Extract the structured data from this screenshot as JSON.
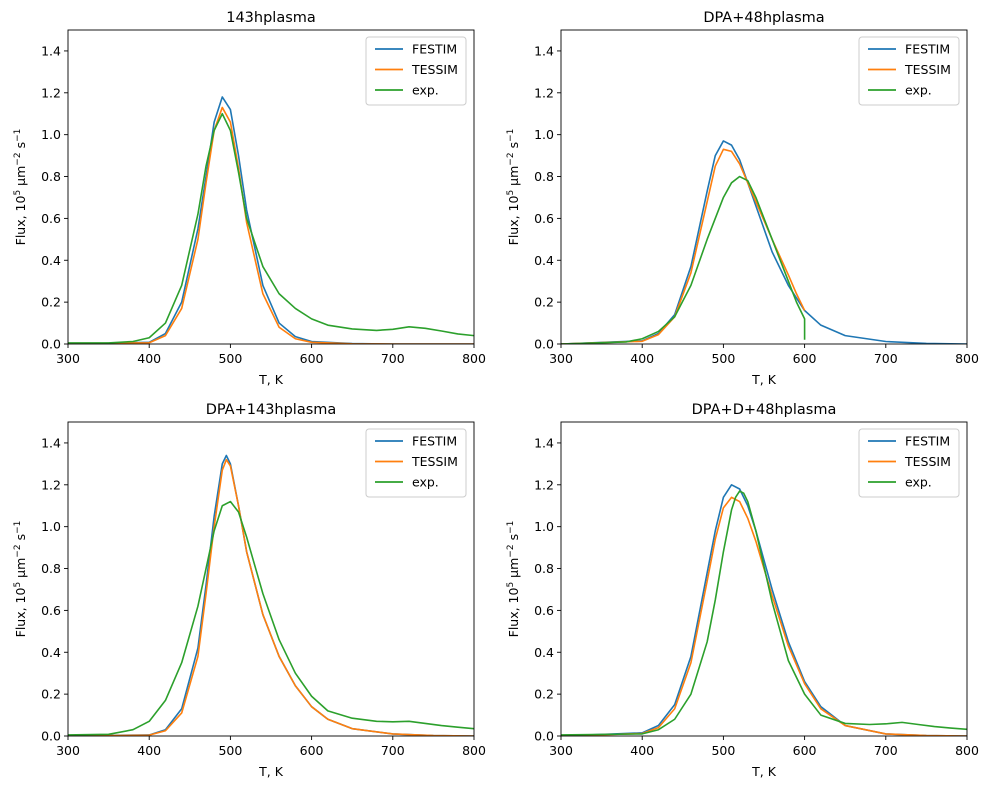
{
  "chart_data": [
    {
      "type": "line",
      "title": "143hplasma",
      "xlabel": "T, K",
      "ylabel": "Flux, 10^5 μm^-2 s^-1",
      "xlim": [
        300,
        800
      ],
      "ylim": [
        0,
        1.5
      ],
      "xticks": [
        "300",
        "400",
        "500",
        "600",
        "700",
        "800"
      ],
      "yticks": [
        "0.0",
        "0.2",
        "0.4",
        "0.6",
        "0.8",
        "1.0",
        "1.2",
        "1.4"
      ],
      "legend_position": "top-right",
      "series": [
        {
          "name": "FESTIM",
          "color": "#1f77b4",
          "x": [
            300,
            400,
            420,
            440,
            460,
            470,
            480,
            490,
            500,
            510,
            520,
            540,
            560,
            580,
            600,
            650,
            700,
            800
          ],
          "y": [
            0,
            0.008,
            0.05,
            0.2,
            0.55,
            0.8,
            1.06,
            1.18,
            1.12,
            0.9,
            0.64,
            0.28,
            0.1,
            0.035,
            0.012,
            0.002,
            0,
            0
          ]
        },
        {
          "name": "TESSIM",
          "color": "#ff7f0e",
          "x": [
            300,
            400,
            420,
            440,
            460,
            470,
            480,
            490,
            500,
            510,
            520,
            540,
            560,
            580,
            600,
            650,
            700,
            800
          ],
          "y": [
            0,
            0.006,
            0.04,
            0.17,
            0.5,
            0.77,
            1.02,
            1.13,
            1.06,
            0.84,
            0.58,
            0.24,
            0.08,
            0.025,
            0.008,
            0.001,
            0,
            0
          ]
        },
        {
          "name": "exp.",
          "color": "#2ca02c",
          "x": [
            300,
            350,
            380,
            400,
            420,
            440,
            460,
            470,
            480,
            490,
            500,
            510,
            520,
            540,
            560,
            580,
            600,
            620,
            650,
            680,
            700,
            720,
            740,
            760,
            780,
            800
          ],
          "y": [
            0.005,
            0.005,
            0.012,
            0.03,
            0.1,
            0.28,
            0.62,
            0.85,
            1.02,
            1.1,
            1.02,
            0.82,
            0.6,
            0.37,
            0.24,
            0.17,
            0.12,
            0.09,
            0.072,
            0.065,
            0.07,
            0.082,
            0.075,
            0.062,
            0.048,
            0.04
          ]
        }
      ]
    },
    {
      "type": "line",
      "title": "DPA+48hplasma",
      "xlabel": "T, K",
      "ylabel": "Flux, 10^5 μm^-2 s^-1",
      "xlim": [
        300,
        800
      ],
      "ylim": [
        0,
        1.5
      ],
      "xticks": [
        "300",
        "400",
        "500",
        "600",
        "700",
        "800"
      ],
      "yticks": [
        "0.0",
        "0.2",
        "0.4",
        "0.6",
        "0.8",
        "1.0",
        "1.2",
        "1.4"
      ],
      "legend_position": "top-right",
      "series": [
        {
          "name": "FESTIM",
          "color": "#1f77b4",
          "x": [
            300,
            400,
            420,
            440,
            460,
            480,
            490,
            500,
            510,
            520,
            540,
            560,
            580,
            600,
            620,
            650,
            700,
            750,
            800
          ],
          "y": [
            0,
            0.015,
            0.05,
            0.14,
            0.37,
            0.73,
            0.9,
            0.97,
            0.95,
            0.88,
            0.66,
            0.44,
            0.28,
            0.16,
            0.09,
            0.04,
            0.012,
            0.003,
            0
          ]
        },
        {
          "name": "TESSIM",
          "color": "#ff7f0e",
          "x": [
            300,
            400,
            420,
            440,
            460,
            480,
            490,
            500,
            510,
            520,
            540,
            560,
            580,
            590,
            600
          ],
          "y": [
            0,
            0.013,
            0.045,
            0.13,
            0.34,
            0.68,
            0.85,
            0.93,
            0.92,
            0.86,
            0.68,
            0.5,
            0.33,
            0.24,
            0.16
          ]
        },
        {
          "name": "exp.",
          "color": "#2ca02c",
          "x": [
            300,
            380,
            400,
            420,
            440,
            460,
            480,
            500,
            510,
            520,
            530,
            540,
            560,
            580,
            590,
            600,
            600
          ],
          "y": [
            0,
            0.01,
            0.025,
            0.06,
            0.13,
            0.28,
            0.5,
            0.7,
            0.77,
            0.8,
            0.78,
            0.7,
            0.5,
            0.3,
            0.2,
            0.12,
            0.02
          ]
        }
      ]
    },
    {
      "type": "line",
      "title": "DPA+143hplasma",
      "xlabel": "T, K",
      "ylabel": "Flux, 10^5 μm^-2 s^-1",
      "xlim": [
        300,
        800
      ],
      "ylim": [
        0,
        1.5
      ],
      "xticks": [
        "300",
        "400",
        "500",
        "600",
        "700",
        "800"
      ],
      "yticks": [
        "0.0",
        "0.2",
        "0.4",
        "0.6",
        "0.8",
        "1.0",
        "1.2",
        "1.4"
      ],
      "legend_position": "top-right",
      "series": [
        {
          "name": "FESTIM",
          "color": "#1f77b4",
          "x": [
            300,
            400,
            420,
            440,
            460,
            470,
            480,
            490,
            495,
            500,
            510,
            520,
            540,
            560,
            580,
            600,
            620,
            650,
            700,
            750,
            800
          ],
          "y": [
            0,
            0.005,
            0.03,
            0.13,
            0.42,
            0.72,
            1.05,
            1.3,
            1.34,
            1.3,
            1.1,
            0.88,
            0.58,
            0.38,
            0.24,
            0.14,
            0.08,
            0.035,
            0.01,
            0.002,
            0
          ]
        },
        {
          "name": "TESSIM",
          "color": "#ff7f0e",
          "x": [
            300,
            400,
            420,
            440,
            460,
            470,
            480,
            490,
            495,
            500,
            510,
            520,
            540,
            560,
            580,
            600,
            620,
            650,
            700,
            750,
            800
          ],
          "y": [
            0,
            0.004,
            0.025,
            0.11,
            0.38,
            0.68,
            1.0,
            1.27,
            1.32,
            1.29,
            1.1,
            0.88,
            0.58,
            0.38,
            0.24,
            0.14,
            0.08,
            0.035,
            0.01,
            0.002,
            0
          ]
        },
        {
          "name": "exp.",
          "color": "#2ca02c",
          "x": [
            300,
            350,
            380,
            400,
            420,
            440,
            460,
            470,
            480,
            490,
            500,
            510,
            520,
            540,
            560,
            580,
            600,
            620,
            650,
            680,
            700,
            720,
            740,
            760,
            780,
            800
          ],
          "y": [
            0.005,
            0.008,
            0.03,
            0.07,
            0.17,
            0.35,
            0.62,
            0.8,
            0.98,
            1.1,
            1.12,
            1.07,
            0.95,
            0.68,
            0.46,
            0.3,
            0.19,
            0.12,
            0.085,
            0.07,
            0.068,
            0.07,
            0.06,
            0.05,
            0.042,
            0.035
          ]
        }
      ]
    },
    {
      "type": "line",
      "title": "DPA+D+48hplasma",
      "xlabel": "T, K",
      "ylabel": "Flux, 10^5 μm^-2 s^-1",
      "xlim": [
        300,
        800
      ],
      "ylim": [
        0,
        1.5
      ],
      "xticks": [
        "300",
        "400",
        "500",
        "600",
        "700",
        "800"
      ],
      "yticks": [
        "0.0",
        "0.2",
        "0.4",
        "0.6",
        "0.8",
        "1.0",
        "1.2",
        "1.4"
      ],
      "legend_position": "top-right",
      "series": [
        {
          "name": "FESTIM",
          "color": "#1f77b4",
          "x": [
            300,
            400,
            420,
            440,
            460,
            480,
            490,
            500,
            510,
            520,
            530,
            540,
            560,
            580,
            600,
            620,
            650,
            700,
            750,
            800
          ],
          "y": [
            0,
            0.015,
            0.05,
            0.15,
            0.38,
            0.78,
            0.98,
            1.14,
            1.2,
            1.18,
            1.1,
            0.98,
            0.7,
            0.45,
            0.26,
            0.14,
            0.05,
            0.01,
            0.002,
            0
          ]
        },
        {
          "name": "TESSIM",
          "color": "#ff7f0e",
          "x": [
            300,
            400,
            420,
            440,
            460,
            480,
            490,
            500,
            510,
            520,
            530,
            540,
            560,
            580,
            600,
            620,
            650,
            700,
            750,
            800
          ],
          "y": [
            0,
            0.012,
            0.04,
            0.13,
            0.35,
            0.74,
            0.94,
            1.09,
            1.14,
            1.12,
            1.04,
            0.93,
            0.67,
            0.43,
            0.25,
            0.13,
            0.05,
            0.01,
            0.002,
            0
          ]
        },
        {
          "name": "exp.",
          "color": "#2ca02c",
          "x": [
            300,
            400,
            420,
            440,
            460,
            480,
            490,
            500,
            510,
            515,
            520,
            525,
            530,
            540,
            560,
            580,
            600,
            620,
            650,
            680,
            700,
            720,
            740,
            760,
            780,
            800
          ],
          "y": [
            0.005,
            0.01,
            0.03,
            0.08,
            0.2,
            0.45,
            0.65,
            0.88,
            1.08,
            1.14,
            1.17,
            1.16,
            1.12,
            0.98,
            0.64,
            0.36,
            0.2,
            0.1,
            0.06,
            0.055,
            0.058,
            0.065,
            0.055,
            0.045,
            0.038,
            0.032
          ]
        }
      ]
    }
  ]
}
